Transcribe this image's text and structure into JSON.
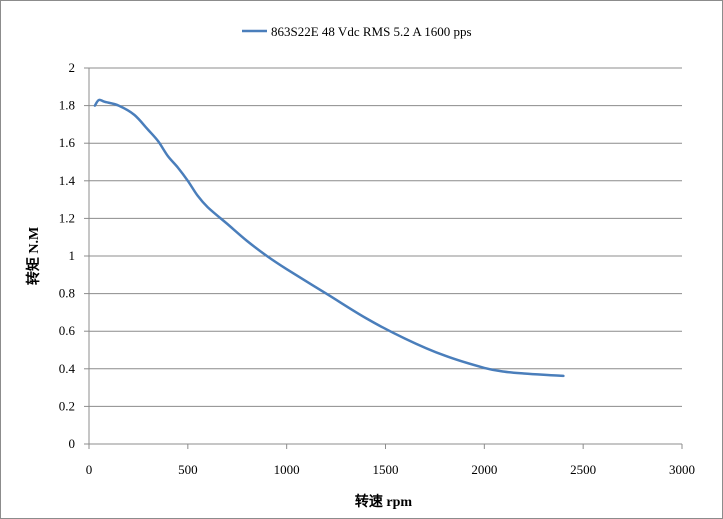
{
  "chart_data": {
    "type": "line",
    "title": "",
    "legend": {
      "position": "top",
      "entries": [
        "863S22E 48 Vdc  RMS 5.2 A  1600 pps"
      ]
    },
    "xlabel": "转速 rpm",
    "ylabel": "转矩 N.M",
    "xlim": [
      0,
      3000
    ],
    "ylim": [
      0,
      2
    ],
    "x_ticks": [
      "0",
      "500",
      "1000",
      "1500",
      "2000",
      "2500",
      "3000"
    ],
    "y_ticks": [
      "0",
      "0.2",
      "0.4",
      "0.6",
      "0.8",
      "1",
      "1.2",
      "1.4",
      "1.6",
      "1.8",
      "2"
    ],
    "grid": "horizontal",
    "series": [
      {
        "name": "863S22E 48 Vdc  RMS 5.2 A  1600 pps",
        "color": "#4a7ebb",
        "x": [
          30,
          50,
          80,
          150,
          230,
          300,
          350,
          400,
          450,
          500,
          550,
          600,
          700,
          800,
          900,
          1000,
          1200,
          1400,
          1600,
          1800,
          2000,
          2100,
          2200,
          2300,
          2400
        ],
        "y": [
          1.8,
          1.83,
          1.82,
          1.8,
          1.75,
          1.67,
          1.61,
          1.53,
          1.47,
          1.4,
          1.32,
          1.26,
          1.17,
          1.08,
          1.0,
          0.93,
          0.8,
          0.67,
          0.56,
          0.47,
          0.405,
          0.385,
          0.375,
          0.368,
          0.362
        ]
      }
    ]
  }
}
